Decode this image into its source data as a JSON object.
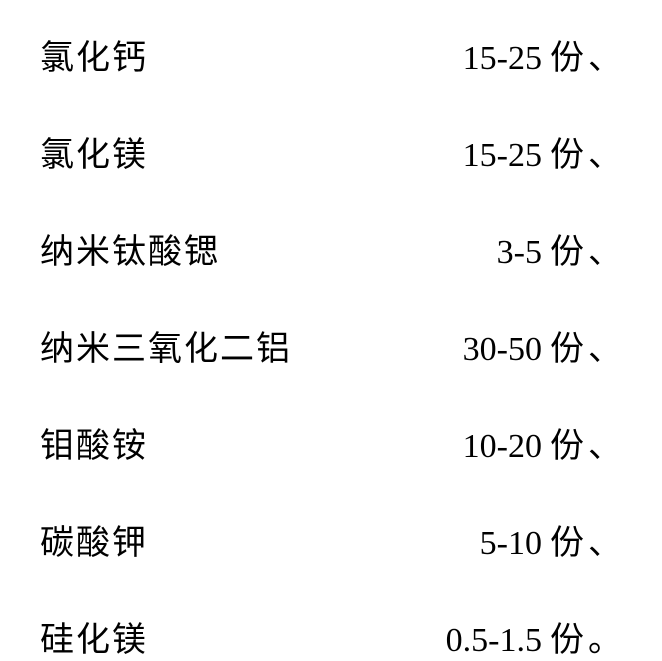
{
  "table": {
    "background_color": "#ffffff",
    "text_color": "#000000",
    "font_size": 34,
    "font_family": "SimSun",
    "row_spacing": 48,
    "rows": [
      {
        "name": "氯化钙",
        "amount": "15-25",
        "unit": "份",
        "punctuation": "、"
      },
      {
        "name": "氯化镁",
        "amount": "15-25",
        "unit": "份",
        "punctuation": "、"
      },
      {
        "name": "纳米钛酸锶",
        "amount": "3-5",
        "unit": "份",
        "punctuation": "、"
      },
      {
        "name": "纳米三氧化二铝",
        "amount": "30-50",
        "unit": "份",
        "punctuation": "、"
      },
      {
        "name": "钼酸铵",
        "amount": "10-20",
        "unit": "份",
        "punctuation": "、"
      },
      {
        "name": "碳酸钾",
        "amount": "5-10",
        "unit": "份",
        "punctuation": "、"
      },
      {
        "name": "硅化镁",
        "amount": "0.5-1.5",
        "unit": "份",
        "punctuation": "。"
      }
    ]
  }
}
